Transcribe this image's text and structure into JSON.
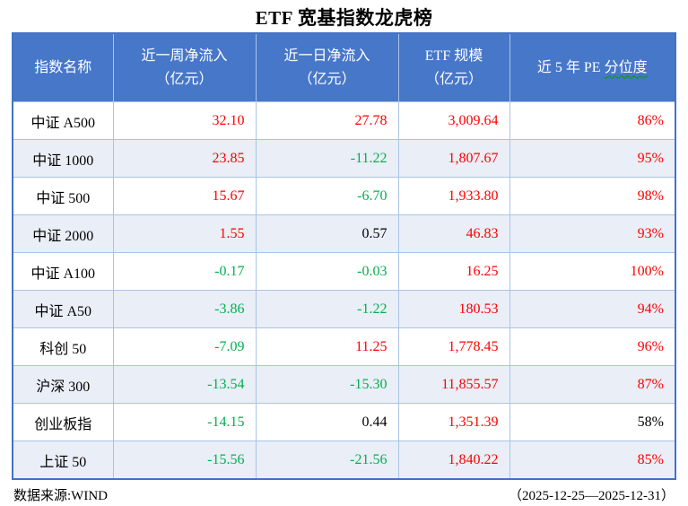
{
  "title": "ETF 宽基指数龙虎榜",
  "colors": {
    "header_bg": "#4777c8",
    "band_row_bg": "#e9eef7",
    "grid_line": "#aac4e6",
    "outer_border": "#4472c4",
    "up": "#fe0000",
    "down": "#00b050",
    "flat": "#000000",
    "squiggle": "#00a000"
  },
  "table": {
    "headers": [
      {
        "line1": "指数名称",
        "line2": ""
      },
      {
        "line1": "近一周净流入",
        "line2": "（亿元）"
      },
      {
        "line1": "近一日净流入",
        "line2": "（亿元）"
      },
      {
        "line1": "ETF 规模",
        "line2": "（亿元）"
      },
      {
        "prefix": "近 5 年 PE ",
        "underlined": "分位度"
      }
    ],
    "rows": [
      {
        "name": "中证 A500",
        "week": {
          "v": "32.10",
          "c": "up"
        },
        "day": {
          "v": "27.78",
          "c": "up"
        },
        "scale": {
          "v": "3,009.64",
          "c": "up"
        },
        "pe": {
          "v": "86%",
          "c": "up"
        }
      },
      {
        "name": "中证 1000",
        "week": {
          "v": "23.85",
          "c": "up"
        },
        "day": {
          "v": "-11.22",
          "c": "down"
        },
        "scale": {
          "v": "1,807.67",
          "c": "up"
        },
        "pe": {
          "v": "95%",
          "c": "up"
        }
      },
      {
        "name": "中证 500",
        "week": {
          "v": "15.67",
          "c": "up"
        },
        "day": {
          "v": "-6.70",
          "c": "down"
        },
        "scale": {
          "v": "1,933.80",
          "c": "up"
        },
        "pe": {
          "v": "98%",
          "c": "up"
        }
      },
      {
        "name": "中证 2000",
        "week": {
          "v": "1.55",
          "c": "up"
        },
        "day": {
          "v": "0.57",
          "c": "flat"
        },
        "scale": {
          "v": "46.83",
          "c": "up"
        },
        "pe": {
          "v": "93%",
          "c": "up"
        }
      },
      {
        "name": "中证 A100",
        "week": {
          "v": "-0.17",
          "c": "down"
        },
        "day": {
          "v": "-0.03",
          "c": "down"
        },
        "scale": {
          "v": "16.25",
          "c": "up"
        },
        "pe": {
          "v": "100%",
          "c": "up"
        }
      },
      {
        "name": "中证 A50",
        "week": {
          "v": "-3.86",
          "c": "down"
        },
        "day": {
          "v": "-1.22",
          "c": "down"
        },
        "scale": {
          "v": "180.53",
          "c": "up"
        },
        "pe": {
          "v": "94%",
          "c": "up"
        }
      },
      {
        "name": "科创 50",
        "week": {
          "v": "-7.09",
          "c": "down"
        },
        "day": {
          "v": "11.25",
          "c": "up"
        },
        "scale": {
          "v": "1,778.45",
          "c": "up"
        },
        "pe": {
          "v": "96%",
          "c": "up"
        }
      },
      {
        "name": "沪深 300",
        "week": {
          "v": "-13.54",
          "c": "down"
        },
        "day": {
          "v": "-15.30",
          "c": "down"
        },
        "scale": {
          "v": "11,855.57",
          "c": "up"
        },
        "pe": {
          "v": "87%",
          "c": "up"
        }
      },
      {
        "name": "创业板指",
        "week": {
          "v": "-14.15",
          "c": "down"
        },
        "day": {
          "v": "0.44",
          "c": "flat"
        },
        "scale": {
          "v": "1,351.39",
          "c": "up"
        },
        "pe": {
          "v": "58%",
          "c": "flat"
        }
      },
      {
        "name": "上证 50",
        "week": {
          "v": "-15.56",
          "c": "down"
        },
        "day": {
          "v": "-21.56",
          "c": "down"
        },
        "scale": {
          "v": "1,840.22",
          "c": "up"
        },
        "pe": {
          "v": "85%",
          "c": "up"
        }
      }
    ]
  },
  "footer": {
    "source": "数据来源:WIND",
    "period": "（2025-12-25—2025-12-31）"
  }
}
